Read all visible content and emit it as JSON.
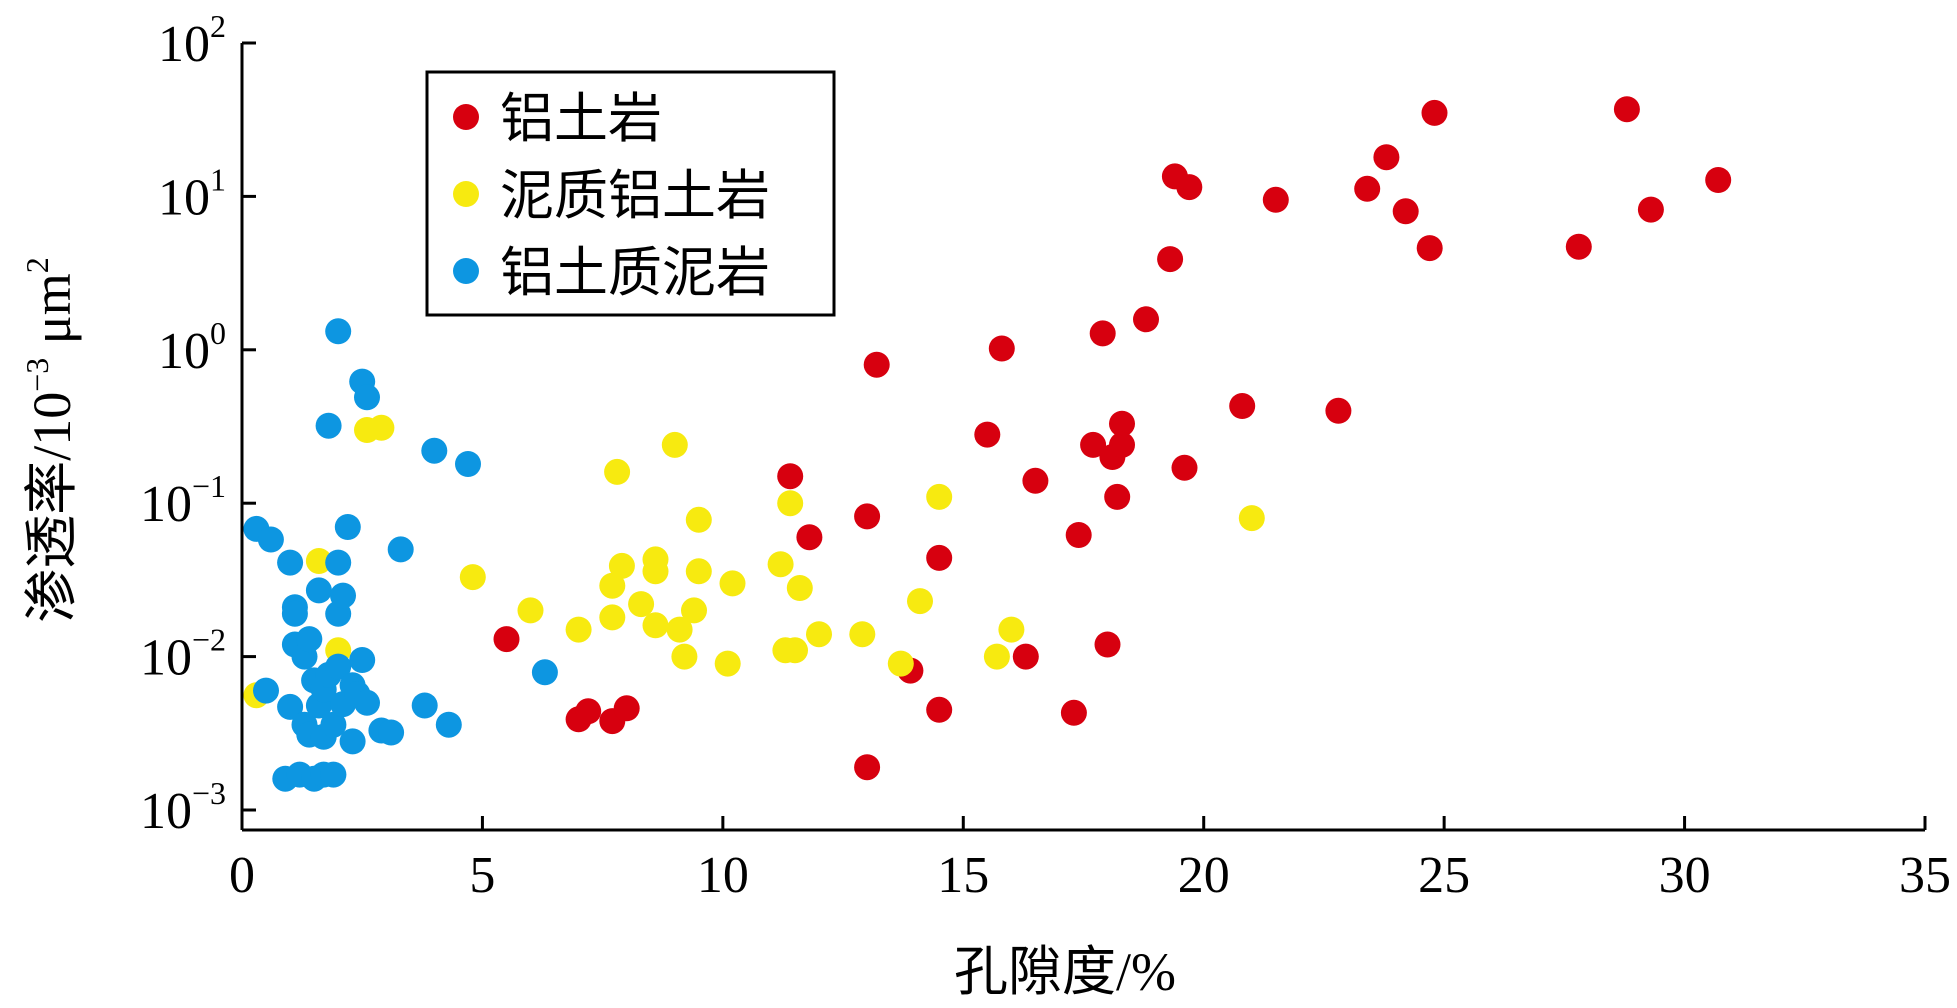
{
  "chart_data": {
    "type": "scatter",
    "xlabel": "孔隙度/%",
    "ylabel_main": "渗透率/10",
    "ylabel_exp": "−3",
    "ylabel_unit": " μm",
    "ylabel_unit_exp": "2",
    "xlim": [
      0,
      35
    ],
    "ylim": [
      0.001,
      100
    ],
    "y_scale": "log",
    "x_ticks": [
      "0",
      "5",
      "10",
      "15",
      "20",
      "25",
      "30",
      "35"
    ],
    "y_ticks": [
      {
        "base": "10",
        "exp": "2"
      },
      {
        "base": "10",
        "exp": "1"
      },
      {
        "base": "10",
        "exp": "0"
      },
      {
        "base": "10",
        "exp": "−1"
      },
      {
        "base": "10",
        "exp": "−2"
      },
      {
        "base": "10",
        "exp": "−3"
      }
    ],
    "grid": false,
    "legend_position": "top-left",
    "series": [
      {
        "name": "铝土岩",
        "color": "#d7000f",
        "points": [
          [
            5.5,
            0.013
          ],
          [
            7.0,
            0.0039
          ],
          [
            7.2,
            0.0044
          ],
          [
            7.7,
            0.0038
          ],
          [
            8.0,
            0.0046
          ],
          [
            11.4,
            0.15
          ],
          [
            11.8,
            0.06
          ],
          [
            13.0,
            0.082
          ],
          [
            13.0,
            0.0019
          ],
          [
            13.2,
            0.8
          ],
          [
            13.9,
            0.0081
          ],
          [
            14.5,
            0.0045
          ],
          [
            14.5,
            0.044
          ],
          [
            15.5,
            0.28
          ],
          [
            15.8,
            1.02
          ],
          [
            16.3,
            0.01
          ],
          [
            16.5,
            0.14
          ],
          [
            17.3,
            0.0043
          ],
          [
            17.4,
            0.062
          ],
          [
            17.7,
            0.24
          ],
          [
            17.9,
            1.28
          ],
          [
            18.0,
            0.012
          ],
          [
            18.1,
            0.2
          ],
          [
            18.2,
            0.11
          ],
          [
            18.3,
            0.33
          ],
          [
            18.3,
            0.24
          ],
          [
            18.8,
            1.58
          ],
          [
            19.3,
            3.9
          ],
          [
            19.4,
            13.5
          ],
          [
            19.6,
            0.17
          ],
          [
            19.7,
            11.5
          ],
          [
            20.8,
            0.43
          ],
          [
            21.5,
            9.5
          ],
          [
            22.8,
            0.4
          ],
          [
            23.4,
            11.2
          ],
          [
            23.8,
            18.0
          ],
          [
            24.2,
            8.0
          ],
          [
            24.7,
            4.6
          ],
          [
            24.8,
            35.0
          ],
          [
            27.8,
            4.7
          ],
          [
            28.8,
            37.0
          ],
          [
            29.3,
            8.2
          ],
          [
            30.7,
            12.8
          ]
        ]
      },
      {
        "name": "泥质铝土岩",
        "color": "#f7ea10",
        "points": [
          [
            0.3,
            0.0056
          ],
          [
            1.6,
            0.042
          ],
          [
            2.0,
            0.011
          ],
          [
            2.6,
            0.3
          ],
          [
            2.9,
            0.31
          ],
          [
            4.8,
            0.033
          ],
          [
            6.0,
            0.02
          ],
          [
            7.0,
            0.015
          ],
          [
            7.7,
            0.029
          ],
          [
            7.7,
            0.018
          ],
          [
            7.8,
            0.16
          ],
          [
            7.9,
            0.039
          ],
          [
            8.3,
            0.022
          ],
          [
            8.6,
            0.043
          ],
          [
            8.6,
            0.036
          ],
          [
            8.6,
            0.016
          ],
          [
            9.0,
            0.24
          ],
          [
            9.1,
            0.015
          ],
          [
            9.2,
            0.01
          ],
          [
            9.4,
            0.02
          ],
          [
            9.5,
            0.036
          ],
          [
            9.5,
            0.078
          ],
          [
            10.1,
            0.009
          ],
          [
            10.2,
            0.03
          ],
          [
            11.2,
            0.04
          ],
          [
            11.3,
            0.011
          ],
          [
            11.4,
            0.1
          ],
          [
            11.5,
            0.011
          ],
          [
            11.6,
            0.028
          ],
          [
            12.0,
            0.014
          ],
          [
            12.9,
            0.014
          ],
          [
            13.7,
            0.009
          ],
          [
            14.1,
            0.023
          ],
          [
            14.5,
            0.11
          ],
          [
            15.7,
            0.01
          ],
          [
            16.0,
            0.015
          ],
          [
            21.0,
            0.08
          ]
        ]
      },
      {
        "name": "铝土质泥岩",
        "color": "#0d96e1",
        "points": [
          [
            0.3,
            0.068
          ],
          [
            0.5,
            0.006
          ],
          [
            0.6,
            0.058
          ],
          [
            0.9,
            0.0016
          ],
          [
            1.0,
            0.0047
          ],
          [
            1.0,
            0.041
          ],
          [
            1.1,
            0.021
          ],
          [
            1.1,
            0.019
          ],
          [
            1.1,
            0.012
          ],
          [
            1.2,
            0.0017
          ],
          [
            1.3,
            0.0036
          ],
          [
            1.3,
            0.01
          ],
          [
            1.4,
            0.0031
          ],
          [
            1.4,
            0.013
          ],
          [
            1.5,
            0.0016
          ],
          [
            1.5,
            0.007
          ],
          [
            1.6,
            0.0048
          ],
          [
            1.6,
            0.027
          ],
          [
            1.7,
            0.0017
          ],
          [
            1.7,
            0.003
          ],
          [
            1.7,
            0.0061
          ],
          [
            1.8,
            0.32
          ],
          [
            1.8,
            0.0076
          ],
          [
            1.9,
            0.0017
          ],
          [
            1.9,
            0.0036
          ],
          [
            2.0,
            0.0086
          ],
          [
            2.0,
            1.32
          ],
          [
            2.0,
            0.041
          ],
          [
            2.0,
            0.019
          ],
          [
            2.1,
            0.025
          ],
          [
            2.1,
            0.0049
          ],
          [
            2.2,
            0.07
          ],
          [
            2.3,
            0.0028
          ],
          [
            2.3,
            0.0065
          ],
          [
            2.4,
            0.0057
          ],
          [
            2.5,
            0.62
          ],
          [
            2.5,
            0.0095
          ],
          [
            2.6,
            0.49
          ],
          [
            2.6,
            0.005
          ],
          [
            2.9,
            0.0033
          ],
          [
            3.1,
            0.0032
          ],
          [
            3.3,
            0.05
          ],
          [
            3.8,
            0.0048
          ],
          [
            4.0,
            0.22
          ],
          [
            4.3,
            0.0036
          ],
          [
            4.7,
            0.18
          ],
          [
            6.3,
            0.0079
          ]
        ]
      }
    ]
  }
}
